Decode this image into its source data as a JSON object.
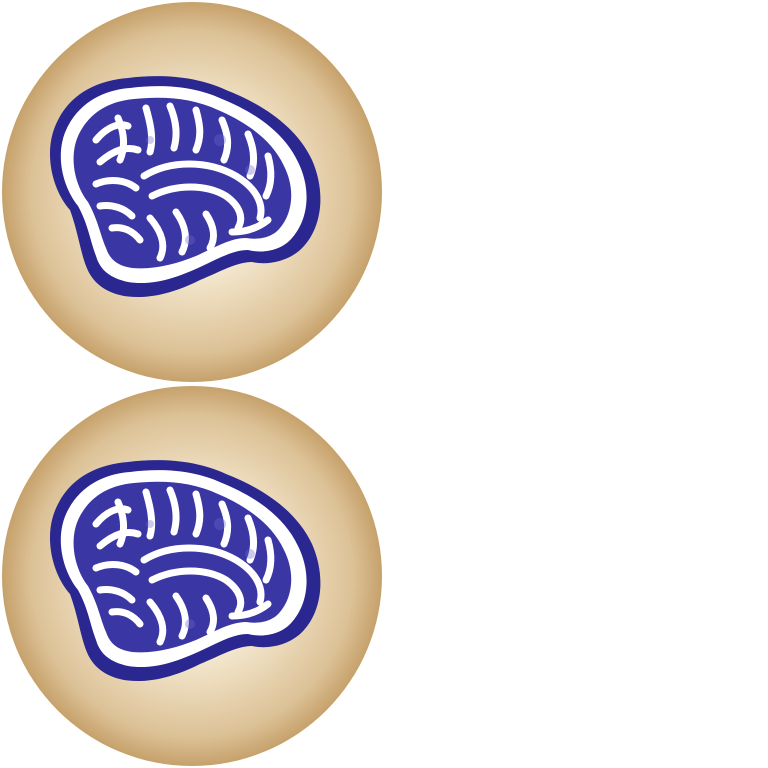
{
  "images": [
    {
      "name": "brain-badge",
      "icon": "brain-icon",
      "position": "top"
    },
    {
      "name": "brain-badge",
      "icon": "brain-icon",
      "position": "bottom"
    }
  ],
  "colors": {
    "badge_center": "#fbf5e9",
    "badge_edge": "#c9a672",
    "brain_outline": "#2a2791",
    "brain_fill": "#3a37a5",
    "brain_highlight": "#ffffff",
    "background": "#ffffff"
  }
}
